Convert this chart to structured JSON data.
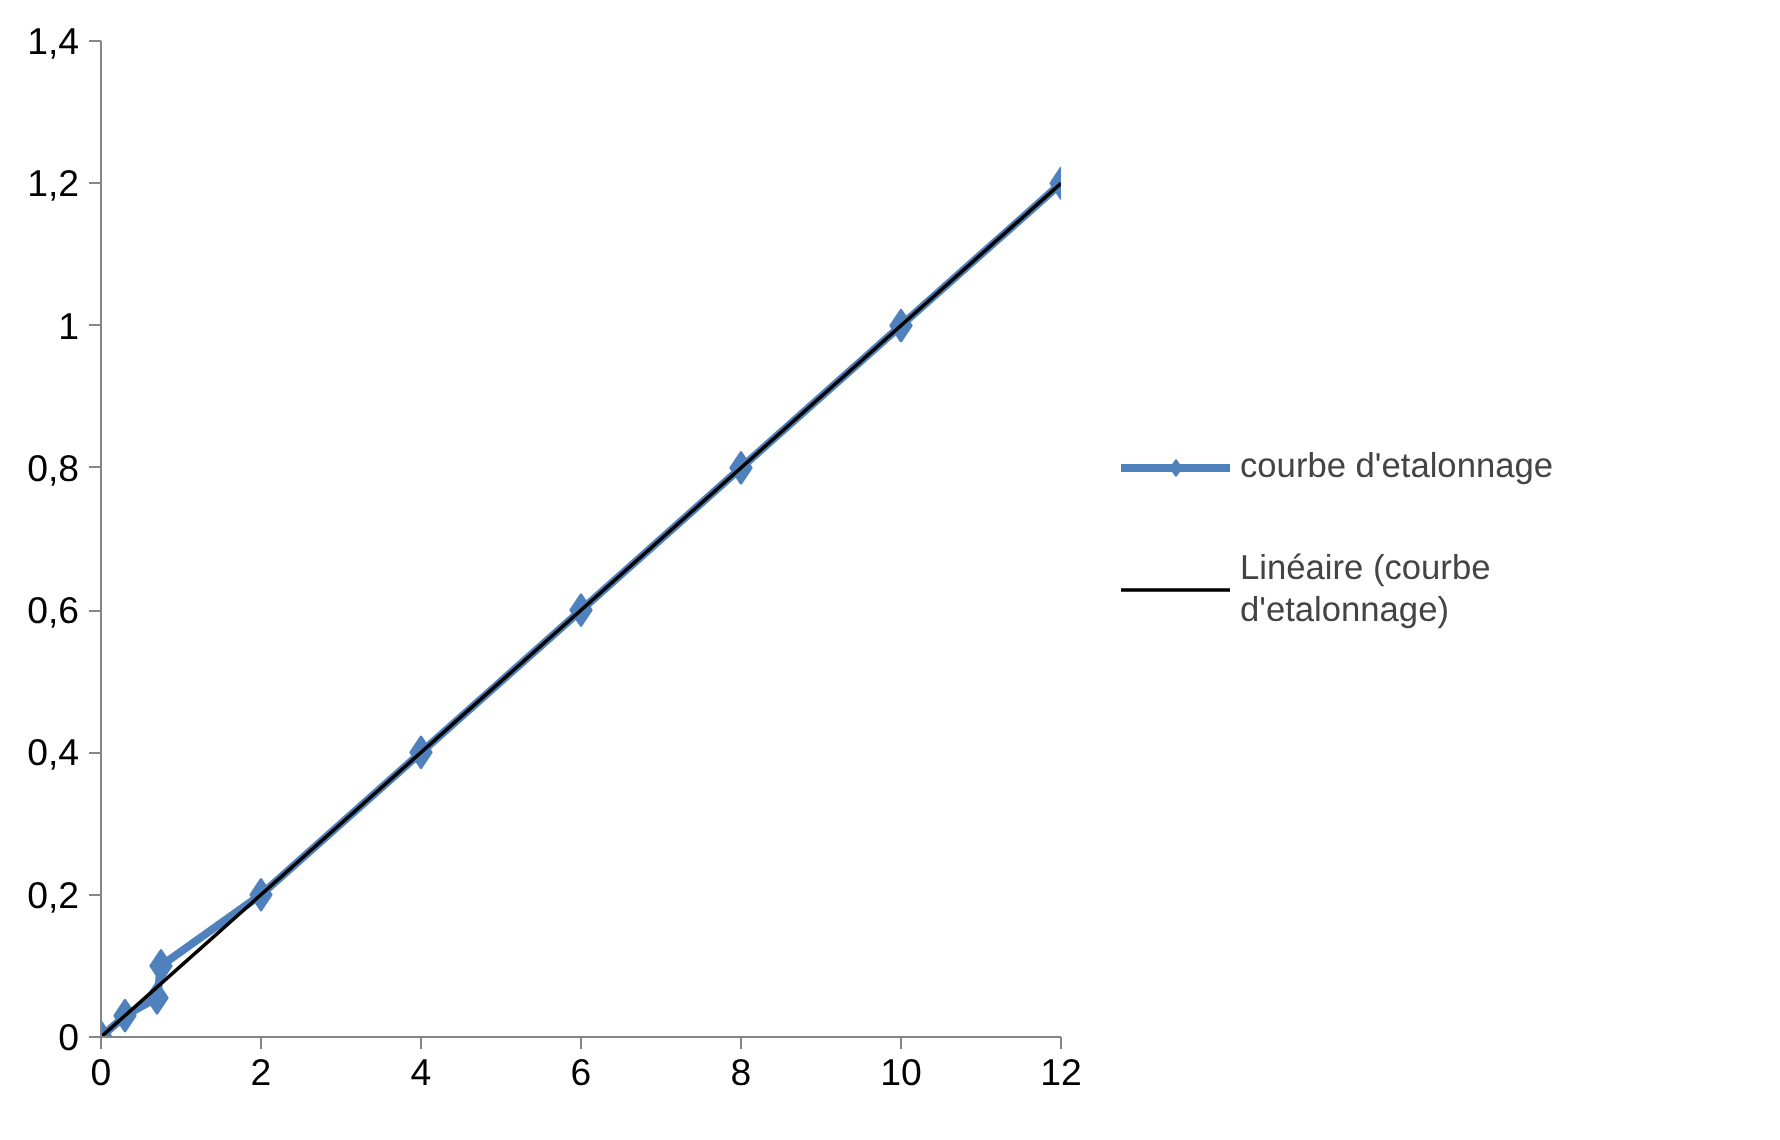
{
  "chart_data": {
    "type": "line",
    "x": [
      0,
      0.3,
      0.7,
      0.75,
      2,
      4,
      6,
      8,
      10,
      12
    ],
    "series": [
      {
        "name": "courbe d'etalonnage",
        "color": "#4f81bd",
        "marker": "diamond",
        "values": [
          0,
          0.03,
          0.055,
          0.1,
          0.2,
          0.4,
          0.6,
          0.8,
          1.0,
          1.2
        ]
      },
      {
        "name": "Linéaire (courbe d'etalonnage)",
        "color": "#000000",
        "marker": "none",
        "x": [
          0,
          12
        ],
        "values": [
          0,
          1.2
        ]
      }
    ],
    "xlim": [
      0,
      12
    ],
    "xticks": [
      0,
      2,
      4,
      6,
      8,
      10,
      12
    ],
    "ylim": [
      0,
      1.4
    ],
    "yticks": [
      0,
      {
        "value": 0.2,
        "label": "0,2"
      },
      {
        "value": 0.4,
        "label": "0,4"
      },
      {
        "value": 0.6,
        "label": "0,6"
      },
      {
        "value": 0.8,
        "label": "0,8"
      },
      1,
      {
        "value": 1.2,
        "label": "1,2"
      },
      {
        "value": 1.4,
        "label": "1,4"
      }
    ],
    "grid": false,
    "legend": "right"
  }
}
